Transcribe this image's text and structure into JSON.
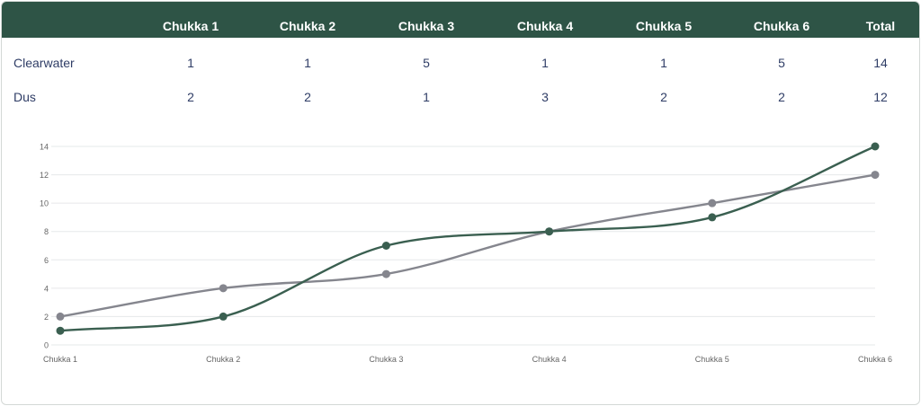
{
  "table": {
    "columns": [
      "Chukka 1",
      "Chukka 2",
      "Chukka 3",
      "Chukka 4",
      "Chukka 5",
      "Chukka 6",
      "Total"
    ],
    "rows": [
      {
        "team": "Clearwater",
        "values": [
          "1",
          "1",
          "5",
          "1",
          "1",
          "5",
          "14"
        ]
      },
      {
        "team": "Dus",
        "values": [
          "2",
          "2",
          "1",
          "3",
          "2",
          "2",
          "12"
        ]
      }
    ]
  },
  "colors": {
    "header_bg": "#2e5446",
    "clearwater_line": "#3a5f50",
    "dus_line": "#85868e",
    "grid": "#e6e8ea",
    "tick_text": "#666666"
  },
  "chart_data": {
    "type": "line",
    "categories": [
      "Chukka 1",
      "Chukka 2",
      "Chukka 3",
      "Chukka 4",
      "Chukka 5",
      "Chukka 6"
    ],
    "series": [
      {
        "name": "Clearwater",
        "values": [
          1,
          2,
          7,
          8,
          9,
          14
        ],
        "color": "#3a5f50"
      },
      {
        "name": "Dus",
        "values": [
          2,
          4,
          5,
          8,
          10,
          12
        ],
        "color": "#85868e"
      }
    ],
    "y_ticks": [
      "0",
      "2",
      "4",
      "6",
      "8",
      "10",
      "12",
      "14"
    ],
    "ylim": [
      0,
      14
    ],
    "grid": true,
    "legend": "none",
    "smooth": true
  }
}
